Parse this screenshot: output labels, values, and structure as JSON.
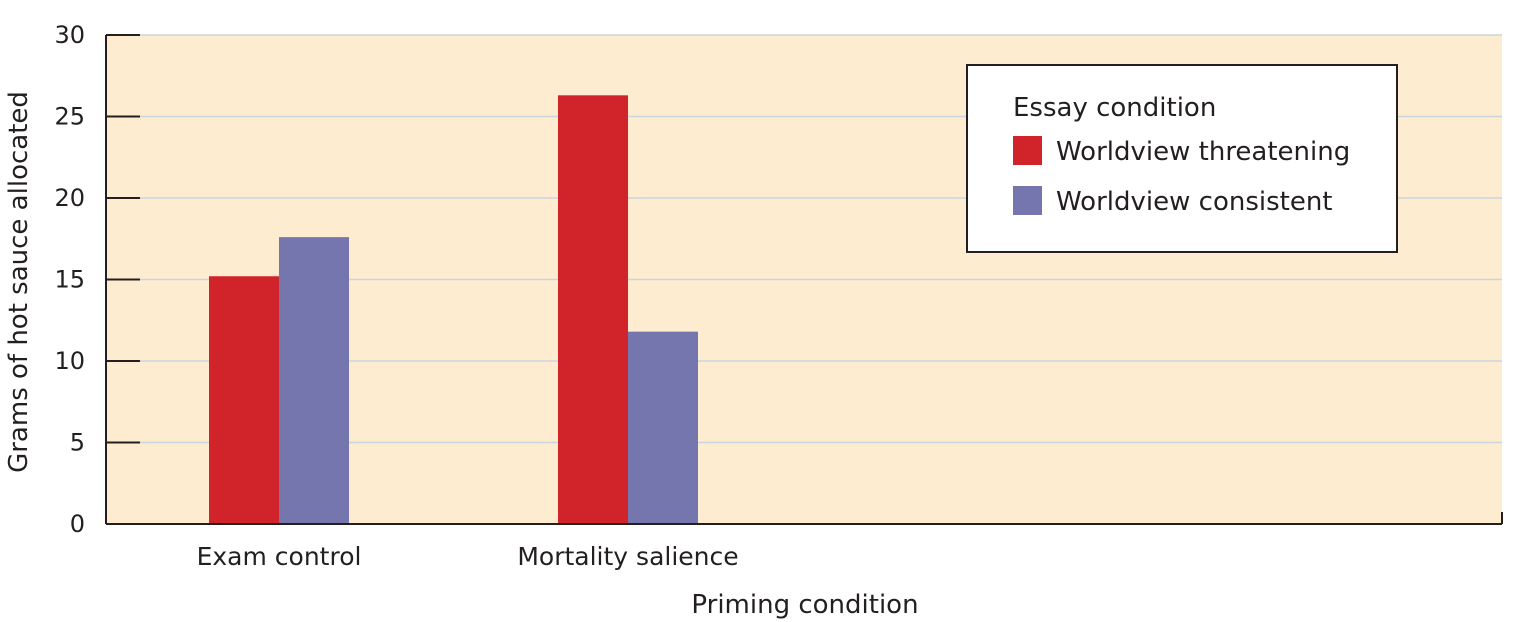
{
  "colors": {
    "plot_background": "#fdeccf",
    "gridline": "#c9d6df",
    "axis": "#231f20",
    "series_threatening": "#d1232a",
    "series_consistent": "#7576ad"
  },
  "chart_data": {
    "type": "bar",
    "title": "",
    "xlabel": "Priming condition",
    "ylabel": "Grams of hot sauce allocated",
    "ylim": [
      0,
      30
    ],
    "yticks": [
      0,
      5,
      10,
      15,
      20,
      25,
      30
    ],
    "grid": true,
    "legend": {
      "title": "Essay condition",
      "placement": "top-right"
    },
    "categories": [
      "Exam control",
      "Mortality salience"
    ],
    "series": [
      {
        "name": "Worldview threatening",
        "values": [
          15.2,
          26.3
        ]
      },
      {
        "name": "Worldview consistent",
        "values": [
          17.6,
          11.8
        ]
      }
    ]
  }
}
